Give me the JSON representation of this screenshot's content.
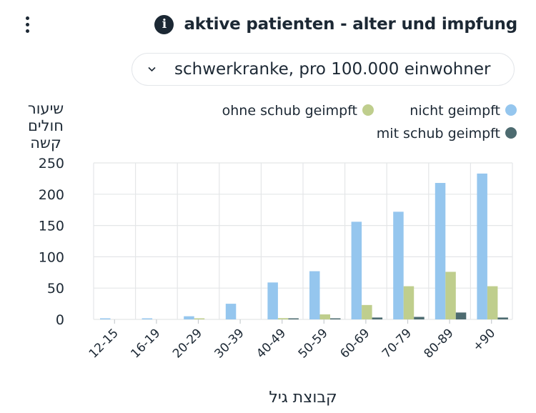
{
  "header": {
    "title": "aktive patienten - alter und impfung",
    "menu_icon": "more-vertical-icon",
    "info_icon": "info-icon"
  },
  "selector": {
    "value": "schwerkranke, pro 100.000 einwohner",
    "icon": "chevron-down-icon"
  },
  "colors": {
    "nicht_geimpft": "#95c6ee",
    "ohne_schub": "#bfce8d",
    "mit_schub": "#4d6b70",
    "grid": "#e4e6e8",
    "text": "#1c2834"
  },
  "chart_data": {
    "type": "bar",
    "ylabel": [
      "שיעור",
      "חולים",
      "קשה"
    ],
    "xlabel": "קבוצת גיל",
    "ylim": [
      0,
      250
    ],
    "yticks": [
      0,
      50,
      100,
      150,
      200,
      250
    ],
    "grid": true,
    "legend_position": "top-right",
    "categories": [
      "12-15",
      "16-19",
      "20-29",
      "30-39",
      "40-49",
      "50-59",
      "60-69",
      "70-79",
      "80-89",
      "+90"
    ],
    "series": [
      {
        "name": "nicht geimpft",
        "values": [
          0.5,
          1,
          5,
          25,
          59,
          77,
          156,
          172,
          218,
          233
        ]
      },
      {
        "name": "ohne schub geimpft",
        "values": [
          0,
          0,
          1,
          0,
          2,
          8,
          23,
          53,
          76,
          53
        ]
      },
      {
        "name": "mit schub geimpft",
        "values": [
          0,
          0,
          0,
          0,
          1,
          1,
          3,
          4,
          11,
          3
        ]
      }
    ]
  }
}
